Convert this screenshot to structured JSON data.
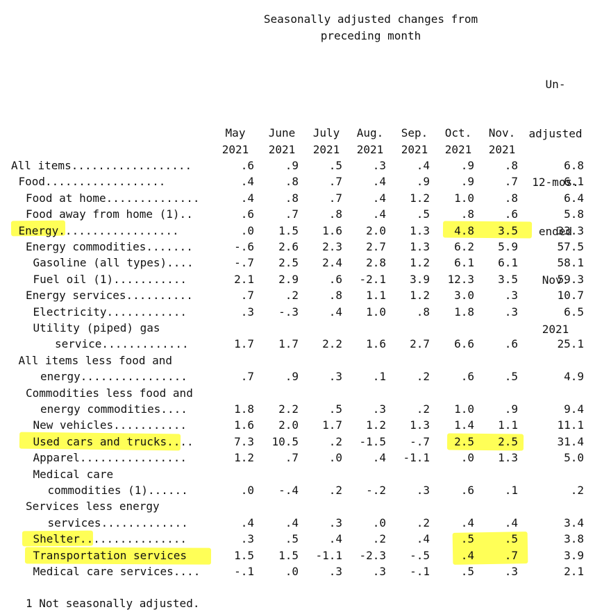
{
  "header": {
    "title_line1": "Seasonally adjusted changes from",
    "title_line2": "preceding month",
    "columns": [
      [
        "May",
        "2021"
      ],
      [
        "June",
        "2021"
      ],
      [
        "July",
        "2021"
      ],
      [
        "Aug.",
        "2021"
      ],
      [
        "Sep.",
        "2021"
      ],
      [
        "Oct.",
        "2021"
      ],
      [
        "Nov.",
        "2021"
      ]
    ],
    "unadjusted": [
      "Un-",
      "adjusted",
      "12-mos.",
      "ended",
      "Nov.",
      "2021"
    ]
  },
  "rows": [
    {
      "label": "All items..................",
      "indent": 0,
      "values": [
        ".6",
        ".9",
        ".5",
        ".3",
        ".4",
        ".9",
        ".8",
        "6.8"
      ]
    },
    {
      "label": "Food..................",
      "indent": 1,
      "values": [
        ".4",
        ".8",
        ".7",
        ".4",
        ".9",
        ".9",
        ".7",
        "6.1"
      ]
    },
    {
      "label": "Food at home..............",
      "indent": 2,
      "values": [
        ".4",
        ".8",
        ".7",
        ".4",
        "1.2",
        "1.0",
        ".8",
        "6.4"
      ]
    },
    {
      "label": "Food away from home (1)..",
      "indent": 2,
      "values": [
        ".6",
        ".7",
        ".8",
        ".4",
        ".5",
        ".8",
        ".6",
        "5.8"
      ]
    },
    {
      "label": "Energy..................",
      "indent": 1,
      "values": [
        ".0",
        "1.5",
        "1.6",
        "2.0",
        "1.3",
        "4.8",
        "3.5",
        "33.3"
      ]
    },
    {
      "label": "Energy commodities.......",
      "indent": 2,
      "values": [
        "-.6",
        "2.6",
        "2.3",
        "2.7",
        "1.3",
        "6.2",
        "5.9",
        "57.5"
      ]
    },
    {
      "label": "Gasoline (all types)....",
      "indent": 3,
      "values": [
        "-.7",
        "2.5",
        "2.4",
        "2.8",
        "1.2",
        "6.1",
        "6.1",
        "58.1"
      ]
    },
    {
      "label": "Fuel oil (1)...........",
      "indent": 3,
      "values": [
        "2.1",
        "2.9",
        ".6",
        "-2.1",
        "3.9",
        "12.3",
        "3.5",
        "59.3"
      ]
    },
    {
      "label": "Energy services..........",
      "indent": 2,
      "values": [
        ".7",
        ".2",
        ".8",
        "1.1",
        "1.2",
        "3.0",
        ".3",
        "10.7"
      ]
    },
    {
      "label": "Electricity............",
      "indent": 3,
      "values": [
        ".3",
        "-.3",
        ".4",
        "1.0",
        ".8",
        "1.8",
        ".3",
        "6.5"
      ]
    },
    {
      "label": "Utility (piped) gas",
      "indent": 3,
      "values": null
    },
    {
      "label": "service.............",
      "indent": 6,
      "values": [
        "1.7",
        "1.7",
        "2.2",
        "1.6",
        "2.7",
        "6.6",
        ".6",
        "25.1"
      ]
    },
    {
      "label": "All items less food and",
      "indent": 1,
      "values": null
    },
    {
      "label": "energy................",
      "indent": 4,
      "values": [
        ".7",
        ".9",
        ".3",
        ".1",
        ".2",
        ".6",
        ".5",
        "4.9"
      ]
    },
    {
      "label": "Commodities less food and",
      "indent": 2,
      "values": null
    },
    {
      "label": "energy commodities....",
      "indent": 4,
      "values": [
        "1.8",
        "2.2",
        ".5",
        ".3",
        ".2",
        "1.0",
        ".9",
        "9.4"
      ]
    },
    {
      "label": "New vehicles...........",
      "indent": 3,
      "values": [
        "1.6",
        "2.0",
        "1.7",
        "1.2",
        "1.3",
        "1.4",
        "1.1",
        "11.1"
      ]
    },
    {
      "label": "Used cars and trucks....",
      "indent": 3,
      "values": [
        "7.3",
        "10.5",
        ".2",
        "-1.5",
        "-.7",
        "2.5",
        "2.5",
        "31.4"
      ]
    },
    {
      "label": "Apparel................",
      "indent": 3,
      "values": [
        "1.2",
        ".7",
        ".0",
        ".4",
        "-1.1",
        ".0",
        "1.3",
        "5.0"
      ]
    },
    {
      "label": "Medical care",
      "indent": 3,
      "values": null
    },
    {
      "label": "commodities (1)......",
      "indent": 5,
      "values": [
        ".0",
        "-.4",
        ".2",
        "-.2",
        ".3",
        ".6",
        ".1",
        ".2"
      ]
    },
    {
      "label": "Services less energy",
      "indent": 2,
      "values": null
    },
    {
      "label": "services.............",
      "indent": 5,
      "values": [
        ".4",
        ".4",
        ".3",
        ".0",
        ".2",
        ".4",
        ".4",
        "3.4"
      ]
    },
    {
      "label": "Shelter................",
      "indent": 3,
      "values": [
        ".3",
        ".5",
        ".4",
        ".2",
        ".4",
        ".5",
        ".5",
        "3.8"
      ]
    },
    {
      "label": "Transportation services",
      "indent": 3,
      "values": [
        "1.5",
        "1.5",
        "-1.1",
        "-2.3",
        "-.5",
        ".4",
        ".7",
        "3.9"
      ]
    },
    {
      "label": "Medical care services....",
      "indent": 3,
      "values": [
        "-.1",
        ".0",
        ".3",
        ".3",
        "-.1",
        ".5",
        ".3",
        "2.1"
      ]
    }
  ],
  "footnote": "1 Not seasonally adjusted.",
  "highlight_color": "#ffff3a"
}
